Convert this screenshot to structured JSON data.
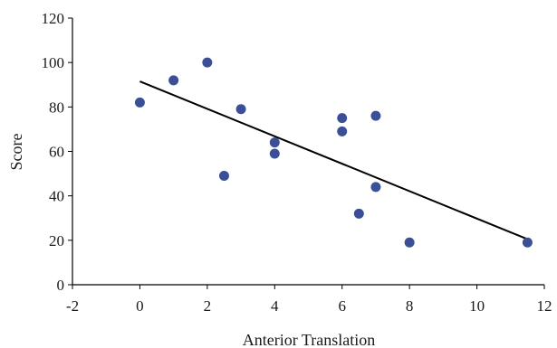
{
  "chart_data": {
    "type": "scatter",
    "title": "",
    "xlabel": "Anterior Translation",
    "ylabel": "Score",
    "xlim": [
      -2,
      12
    ],
    "ylim": [
      0,
      120
    ],
    "xticks": [
      -2,
      0,
      2,
      4,
      6,
      8,
      10,
      12
    ],
    "yticks": [
      0,
      20,
      40,
      60,
      80,
      100,
      120
    ],
    "xtick_labels": [
      "-2",
      "0",
      "2",
      "4",
      "6",
      "8",
      "10",
      "12"
    ],
    "ytick_labels": [
      "0",
      "20",
      "40",
      "60",
      "80",
      "100",
      "120"
    ],
    "grid": false,
    "legend": "none",
    "marker_color": "#3a4f96",
    "line_color": "#000000",
    "series": [
      {
        "points": [
          {
            "x": 0,
            "y": 82
          },
          {
            "x": 1,
            "y": 92
          },
          {
            "x": 2,
            "y": 100
          },
          {
            "x": 2.5,
            "y": 49
          },
          {
            "x": 3,
            "y": 79
          },
          {
            "x": 4,
            "y": 64
          },
          {
            "x": 4,
            "y": 59
          },
          {
            "x": 6,
            "y": 75
          },
          {
            "x": 6,
            "y": 69
          },
          {
            "x": 6.5,
            "y": 32
          },
          {
            "x": 7,
            "y": 76
          },
          {
            "x": 7,
            "y": 44
          },
          {
            "x": 8,
            "y": 19
          },
          {
            "x": 11.5,
            "y": 19
          }
        ]
      }
    ],
    "trendline": {
      "type": "linear",
      "x": [
        0,
        11.5
      ],
      "y": [
        91.5,
        20.5
      ]
    }
  }
}
